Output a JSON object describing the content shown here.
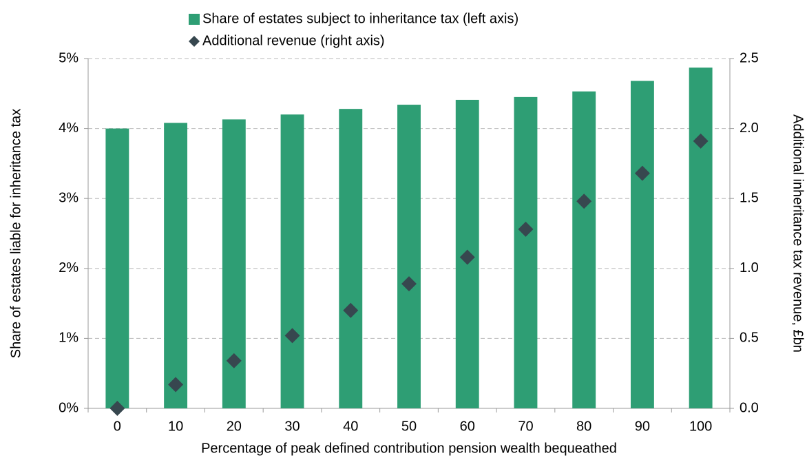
{
  "chart_data": {
    "type": "bar",
    "xlabel": "Percentage of peak defined contribution pension wealth bequeathed",
    "ylabel": "Share of estates liable for inheritance tax",
    "y2label": "Additional inheritance tax revenue, £bn",
    "categories": [
      "0",
      "10",
      "20",
      "30",
      "40",
      "50",
      "60",
      "70",
      "80",
      "90",
      "100"
    ],
    "series": [
      {
        "name": "Share of estates subject to inheritance tax (left axis)",
        "type": "bar",
        "color": "#2e9e74",
        "values": [
          4.0,
          4.08,
          4.13,
          4.2,
          4.28,
          4.34,
          4.41,
          4.45,
          4.53,
          4.68,
          4.87
        ]
      },
      {
        "name": "Additional revenue (right axis)",
        "type": "scatter",
        "marker": "diamond",
        "color": "#37474f",
        "axis": "y2",
        "values": [
          0,
          0.17,
          0.34,
          0.52,
          0.7,
          0.89,
          1.08,
          1.28,
          1.48,
          1.68,
          1.91
        ]
      }
    ],
    "ylim": [
      0,
      5
    ],
    "yticks": [
      {
        "value": 0,
        "label": "0%"
      },
      {
        "value": 1,
        "label": "1%"
      },
      {
        "value": 2,
        "label": "2%"
      },
      {
        "value": 3,
        "label": "3%"
      },
      {
        "value": 4,
        "label": "4%"
      },
      {
        "value": 5,
        "label": "5%"
      }
    ],
    "y2lim": [
      0,
      2.5
    ],
    "y2ticks": [
      {
        "value": 0,
        "label": "0.0"
      },
      0.5,
      {
        "value": 1,
        "label": "1.0"
      },
      1.5,
      {
        "value": 2,
        "label": "2.0"
      },
      2.5
    ],
    "grid": true
  }
}
